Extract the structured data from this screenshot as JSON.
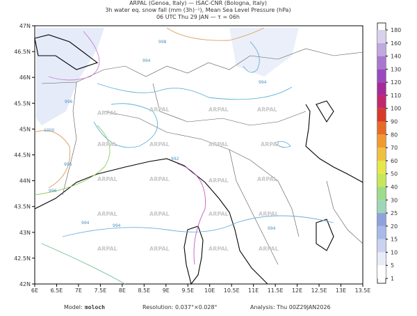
{
  "header": {
    "lines": [
      "ARPAL (Genoa, Italy)  —  ISAC-CNR (Bologna, Italy)",
      "3h water eq. snow fall (mm (3h)⁻¹), Mean Sea Level Pressure (hPa)",
      "06 UTC Thu 29 JAN  —  τ = 06h"
    ]
  },
  "map": {
    "lat_labels": [
      "47N",
      "46.5N",
      "46N",
      "45.5N",
      "45N",
      "44.5N",
      "44N",
      "43.5N",
      "43N",
      "42.5N",
      "42N"
    ],
    "lon_labels": [
      "6E",
      "6.5E",
      "7E",
      "7.5E",
      "8E",
      "8.5E",
      "9E",
      "9.5E",
      "10E",
      "10.5E",
      "11E",
      "11.5E",
      "12E",
      "12.5E",
      "13E",
      "13.5E"
    ],
    "watermark": "ARPAL",
    "contour_labels": [
      "998",
      "996",
      "994",
      "994",
      "1000",
      "996",
      "996",
      "994",
      "992",
      "994",
      "994"
    ]
  },
  "colorbar": {
    "labels": [
      "1",
      "5",
      "10",
      "15",
      "20",
      "25",
      "30",
      "40",
      "50",
      "60",
      "70",
      "80",
      "90",
      "100",
      "110",
      "120",
      "130",
      "140",
      "160",
      "180"
    ],
    "colors": [
      "#ffffff",
      "#e8ecf8",
      "#c9d3f0",
      "#a9b9e8",
      "#8fa2de",
      "#9fd6b8",
      "#9fdc8a",
      "#c8e65a",
      "#e6e84a",
      "#f0c040",
      "#f09a30",
      "#e86a28",
      "#d83a2a",
      "#c02a6a",
      "#a62a9a",
      "#9a4ac0",
      "#a878d0",
      "#c0a8e0",
      "#d8d0ec"
    ]
  },
  "footer": {
    "model_label": "Model:",
    "model": "moloch",
    "resolution": "Resolution: 0.037°×0.028°",
    "analysis": "Analysis: Thu 00Z29JAN2026"
  }
}
